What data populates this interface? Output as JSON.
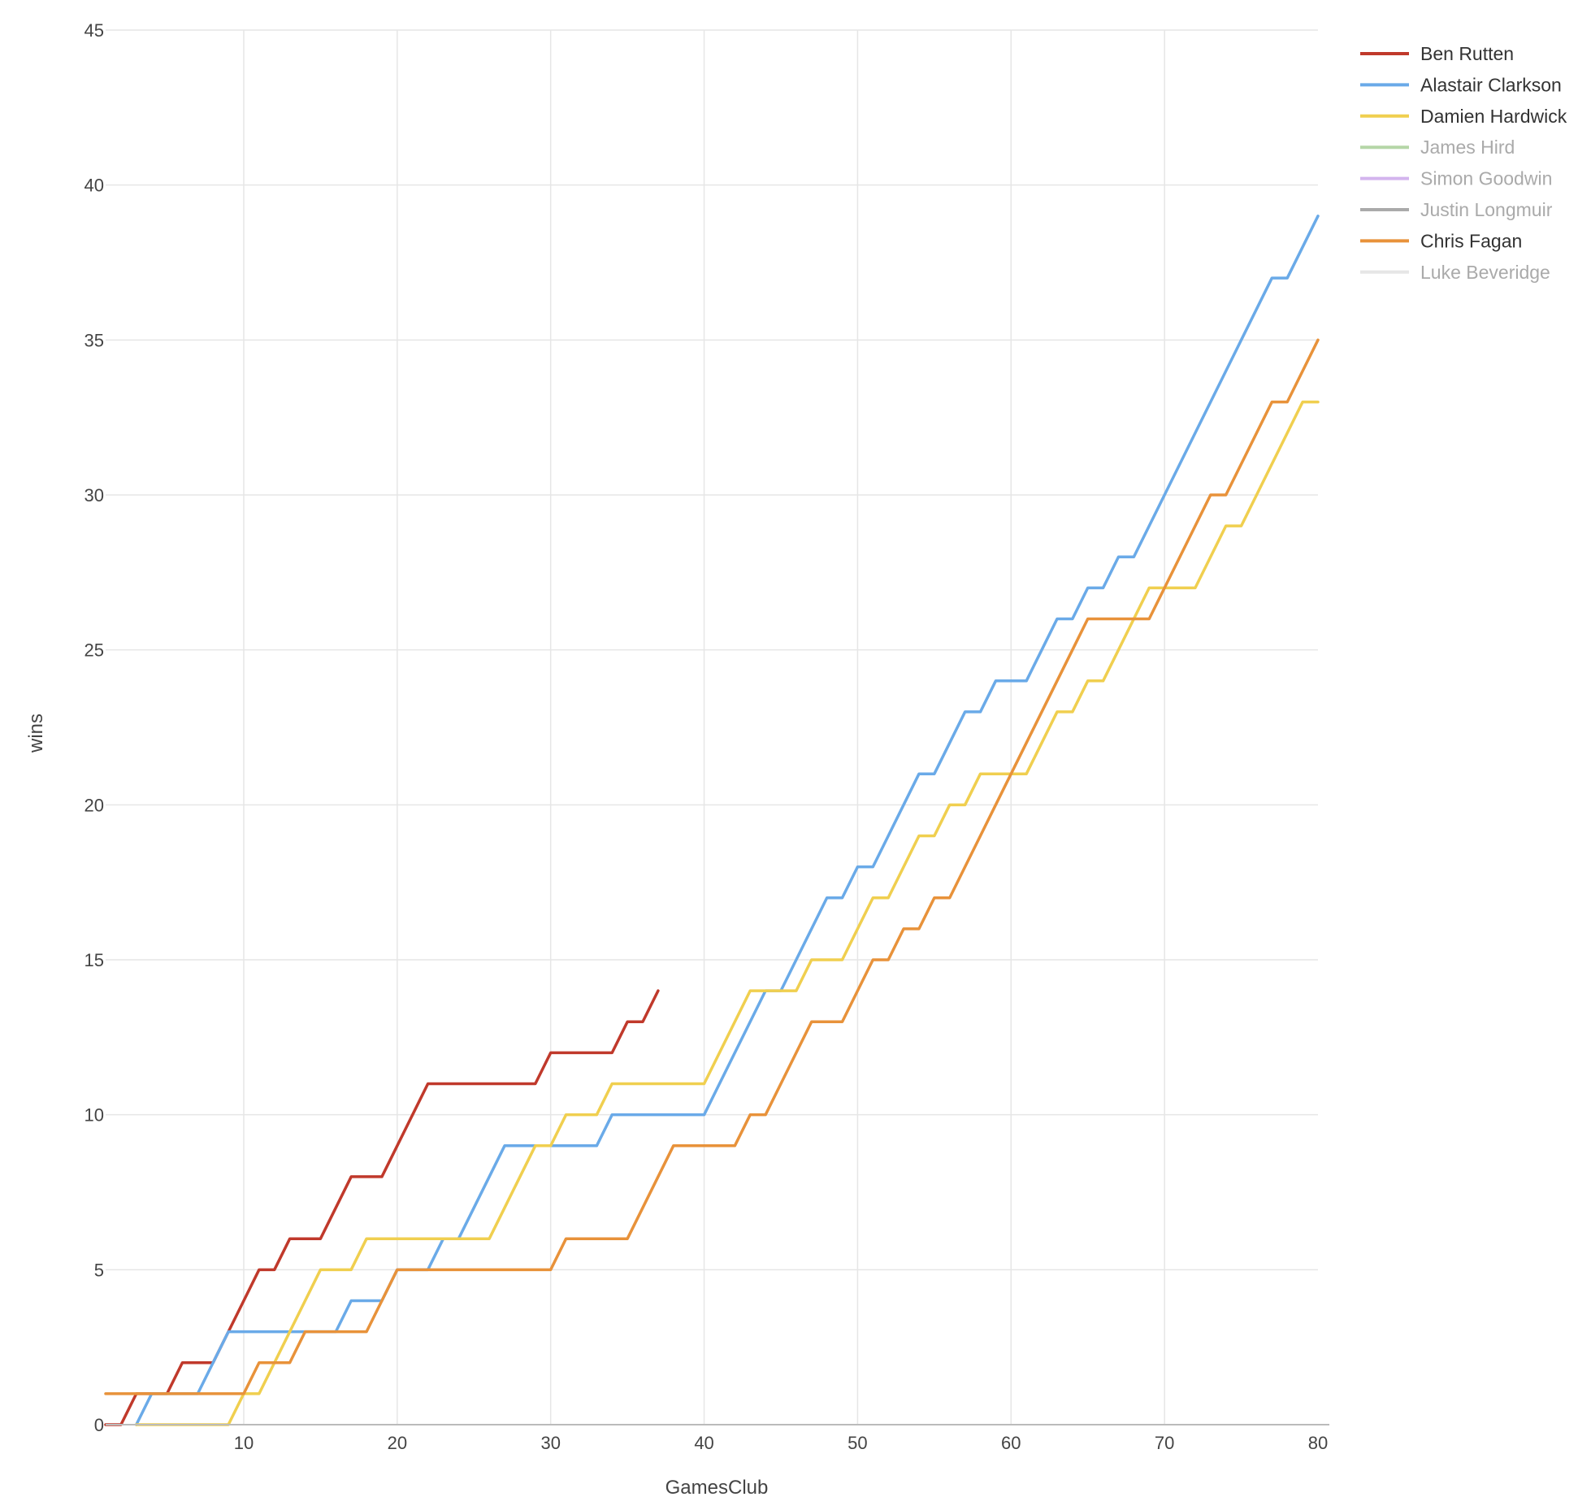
{
  "chart_data": {
    "type": "line",
    "xlabel": "GamesClub",
    "ylabel": "wins",
    "xlim": [
      1,
      80
    ],
    "ylim": [
      0,
      45
    ],
    "x_ticks": [
      10,
      20,
      30,
      40,
      50,
      60,
      70,
      80
    ],
    "y_ticks": [
      0,
      5,
      10,
      15,
      20,
      25,
      30,
      35,
      40,
      45
    ],
    "grid": true,
    "legend_position": "top-right",
    "series": [
      {
        "name": "Ben Rutten",
        "color": "#c0392b",
        "visible": true,
        "points": [
          [
            1,
            0
          ],
          [
            2,
            0
          ],
          [
            3,
            1
          ],
          [
            4,
            1
          ],
          [
            5,
            1
          ],
          [
            6,
            2
          ],
          [
            7,
            2
          ],
          [
            8,
            2
          ],
          [
            9,
            3
          ],
          [
            10,
            4
          ],
          [
            11,
            5
          ],
          [
            12,
            5
          ],
          [
            13,
            6
          ],
          [
            14,
            6
          ],
          [
            15,
            6
          ],
          [
            16,
            7
          ],
          [
            17,
            8
          ],
          [
            18,
            8
          ],
          [
            19,
            8
          ],
          [
            20,
            9
          ],
          [
            21,
            10
          ],
          [
            22,
            11
          ],
          [
            23,
            11
          ],
          [
            24,
            11
          ],
          [
            25,
            11
          ],
          [
            26,
            11
          ],
          [
            27,
            11
          ],
          [
            28,
            11
          ],
          [
            29,
            11
          ],
          [
            30,
            12
          ],
          [
            31,
            12
          ],
          [
            32,
            12
          ],
          [
            33,
            12
          ],
          [
            34,
            12
          ],
          [
            35,
            13
          ],
          [
            36,
            13
          ],
          [
            37,
            14
          ]
        ]
      },
      {
        "name": "Alastair Clarkson",
        "color": "#6aaae8",
        "visible": true,
        "points": [
          [
            3,
            0
          ],
          [
            4,
            1
          ],
          [
            5,
            1
          ],
          [
            6,
            1
          ],
          [
            7,
            1
          ],
          [
            8,
            2
          ],
          [
            9,
            3
          ],
          [
            10,
            3
          ],
          [
            11,
            3
          ],
          [
            12,
            3
          ],
          [
            13,
            3
          ],
          [
            14,
            3
          ],
          [
            15,
            3
          ],
          [
            16,
            3
          ],
          [
            17,
            4
          ],
          [
            18,
            4
          ],
          [
            19,
            4
          ],
          [
            20,
            5
          ],
          [
            21,
            5
          ],
          [
            22,
            5
          ],
          [
            23,
            6
          ],
          [
            24,
            6
          ],
          [
            25,
            7
          ],
          [
            26,
            8
          ],
          [
            27,
            9
          ],
          [
            28,
            9
          ],
          [
            29,
            9
          ],
          [
            30,
            9
          ],
          [
            31,
            9
          ],
          [
            32,
            9
          ],
          [
            33,
            9
          ],
          [
            34,
            10
          ],
          [
            35,
            10
          ],
          [
            36,
            10
          ],
          [
            37,
            10
          ],
          [
            38,
            10
          ],
          [
            39,
            10
          ],
          [
            40,
            10
          ],
          [
            41,
            11
          ],
          [
            42,
            12
          ],
          [
            43,
            13
          ],
          [
            44,
            14
          ],
          [
            45,
            14
          ],
          [
            46,
            15
          ],
          [
            47,
            16
          ],
          [
            48,
            17
          ],
          [
            49,
            17
          ],
          [
            50,
            18
          ],
          [
            51,
            18
          ],
          [
            52,
            19
          ],
          [
            53,
            20
          ],
          [
            54,
            21
          ],
          [
            55,
            21
          ],
          [
            56,
            22
          ],
          [
            57,
            23
          ],
          [
            58,
            23
          ],
          [
            59,
            24
          ],
          [
            60,
            24
          ],
          [
            61,
            24
          ],
          [
            62,
            25
          ],
          [
            63,
            26
          ],
          [
            64,
            26
          ],
          [
            65,
            27
          ],
          [
            66,
            27
          ],
          [
            67,
            28
          ],
          [
            68,
            28
          ],
          [
            69,
            29
          ],
          [
            70,
            30
          ],
          [
            71,
            31
          ],
          [
            72,
            32
          ],
          [
            73,
            33
          ],
          [
            74,
            34
          ],
          [
            75,
            35
          ],
          [
            76,
            36
          ],
          [
            77,
            37
          ],
          [
            78,
            37
          ],
          [
            79,
            38
          ],
          [
            80,
            39
          ]
        ]
      },
      {
        "name": "Damien Hardwick",
        "color": "#f0cf4f",
        "visible": true,
        "points": [
          [
            3,
            0
          ],
          [
            4,
            0
          ],
          [
            5,
            0
          ],
          [
            6,
            0
          ],
          [
            7,
            0
          ],
          [
            8,
            0
          ],
          [
            9,
            0
          ],
          [
            10,
            1
          ],
          [
            11,
            1
          ],
          [
            12,
            2
          ],
          [
            13,
            3
          ],
          [
            14,
            4
          ],
          [
            15,
            5
          ],
          [
            16,
            5
          ],
          [
            17,
            5
          ],
          [
            18,
            6
          ],
          [
            19,
            6
          ],
          [
            20,
            6
          ],
          [
            21,
            6
          ],
          [
            22,
            6
          ],
          [
            23,
            6
          ],
          [
            24,
            6
          ],
          [
            25,
            6
          ],
          [
            26,
            6
          ],
          [
            27,
            7
          ],
          [
            28,
            8
          ],
          [
            29,
            9
          ],
          [
            30,
            9
          ],
          [
            31,
            10
          ],
          [
            32,
            10
          ],
          [
            33,
            10
          ],
          [
            34,
            11
          ],
          [
            35,
            11
          ],
          [
            36,
            11
          ],
          [
            37,
            11
          ],
          [
            38,
            11
          ],
          [
            39,
            11
          ],
          [
            40,
            11
          ],
          [
            41,
            12
          ],
          [
            42,
            13
          ],
          [
            43,
            14
          ],
          [
            44,
            14
          ],
          [
            45,
            14
          ],
          [
            46,
            14
          ],
          [
            47,
            15
          ],
          [
            48,
            15
          ],
          [
            49,
            15
          ],
          [
            50,
            16
          ],
          [
            51,
            17
          ],
          [
            52,
            17
          ],
          [
            53,
            18
          ],
          [
            54,
            19
          ],
          [
            55,
            19
          ],
          [
            56,
            20
          ],
          [
            57,
            20
          ],
          [
            58,
            21
          ],
          [
            59,
            21
          ],
          [
            60,
            21
          ],
          [
            61,
            21
          ],
          [
            62,
            22
          ],
          [
            63,
            23
          ],
          [
            64,
            23
          ],
          [
            65,
            24
          ],
          [
            66,
            24
          ],
          [
            67,
            25
          ],
          [
            68,
            26
          ],
          [
            69,
            27
          ],
          [
            70,
            27
          ],
          [
            71,
            27
          ],
          [
            72,
            27
          ],
          [
            73,
            28
          ],
          [
            74,
            29
          ],
          [
            75,
            29
          ],
          [
            76,
            30
          ],
          [
            77,
            31
          ],
          [
            78,
            32
          ],
          [
            79,
            33
          ],
          [
            80,
            33
          ]
        ]
      },
      {
        "name": "James Hird",
        "color": "#b5d6a7",
        "visible": false,
        "points": []
      },
      {
        "name": "Simon Goodwin",
        "color": "#d3b4ee",
        "visible": false,
        "points": []
      },
      {
        "name": "Justin Longmuir",
        "color": "#aaaaaa",
        "visible": false,
        "points": []
      },
      {
        "name": "Chris Fagan",
        "color": "#e8923a",
        "visible": true,
        "points": [
          [
            1,
            1
          ],
          [
            2,
            1
          ],
          [
            3,
            1
          ],
          [
            4,
            1
          ],
          [
            5,
            1
          ],
          [
            6,
            1
          ],
          [
            7,
            1
          ],
          [
            8,
            1
          ],
          [
            9,
            1
          ],
          [
            10,
            1
          ],
          [
            11,
            2
          ],
          [
            12,
            2
          ],
          [
            13,
            2
          ],
          [
            14,
            3
          ],
          [
            15,
            3
          ],
          [
            16,
            3
          ],
          [
            17,
            3
          ],
          [
            18,
            3
          ],
          [
            19,
            4
          ],
          [
            20,
            5
          ],
          [
            21,
            5
          ],
          [
            22,
            5
          ],
          [
            23,
            5
          ],
          [
            24,
            5
          ],
          [
            25,
            5
          ],
          [
            26,
            5
          ],
          [
            27,
            5
          ],
          [
            28,
            5
          ],
          [
            29,
            5
          ],
          [
            30,
            5
          ],
          [
            31,
            6
          ],
          [
            32,
            6
          ],
          [
            33,
            6
          ],
          [
            34,
            6
          ],
          [
            35,
            6
          ],
          [
            36,
            7
          ],
          [
            37,
            8
          ],
          [
            38,
            9
          ],
          [
            39,
            9
          ],
          [
            40,
            9
          ],
          [
            41,
            9
          ],
          [
            42,
            9
          ],
          [
            43,
            10
          ],
          [
            44,
            10
          ],
          [
            45,
            11
          ],
          [
            46,
            12
          ],
          [
            47,
            13
          ],
          [
            48,
            13
          ],
          [
            49,
            13
          ],
          [
            50,
            14
          ],
          [
            51,
            15
          ],
          [
            52,
            15
          ],
          [
            53,
            16
          ],
          [
            54,
            16
          ],
          [
            55,
            17
          ],
          [
            56,
            17
          ],
          [
            57,
            18
          ],
          [
            58,
            19
          ],
          [
            59,
            20
          ],
          [
            60,
            21
          ],
          [
            61,
            22
          ],
          [
            62,
            23
          ],
          [
            63,
            24
          ],
          [
            64,
            25
          ],
          [
            65,
            26
          ],
          [
            66,
            26
          ],
          [
            67,
            26
          ],
          [
            68,
            26
          ],
          [
            69,
            26
          ],
          [
            70,
            27
          ],
          [
            71,
            28
          ],
          [
            72,
            29
          ],
          [
            73,
            30
          ],
          [
            74,
            30
          ],
          [
            75,
            31
          ],
          [
            76,
            32
          ],
          [
            77,
            33
          ],
          [
            78,
            33
          ],
          [
            79,
            34
          ],
          [
            80,
            35
          ]
        ]
      },
      {
        "name": "Luke Beveridge",
        "color": "#e6e6e6",
        "visible": false,
        "points": []
      }
    ]
  }
}
